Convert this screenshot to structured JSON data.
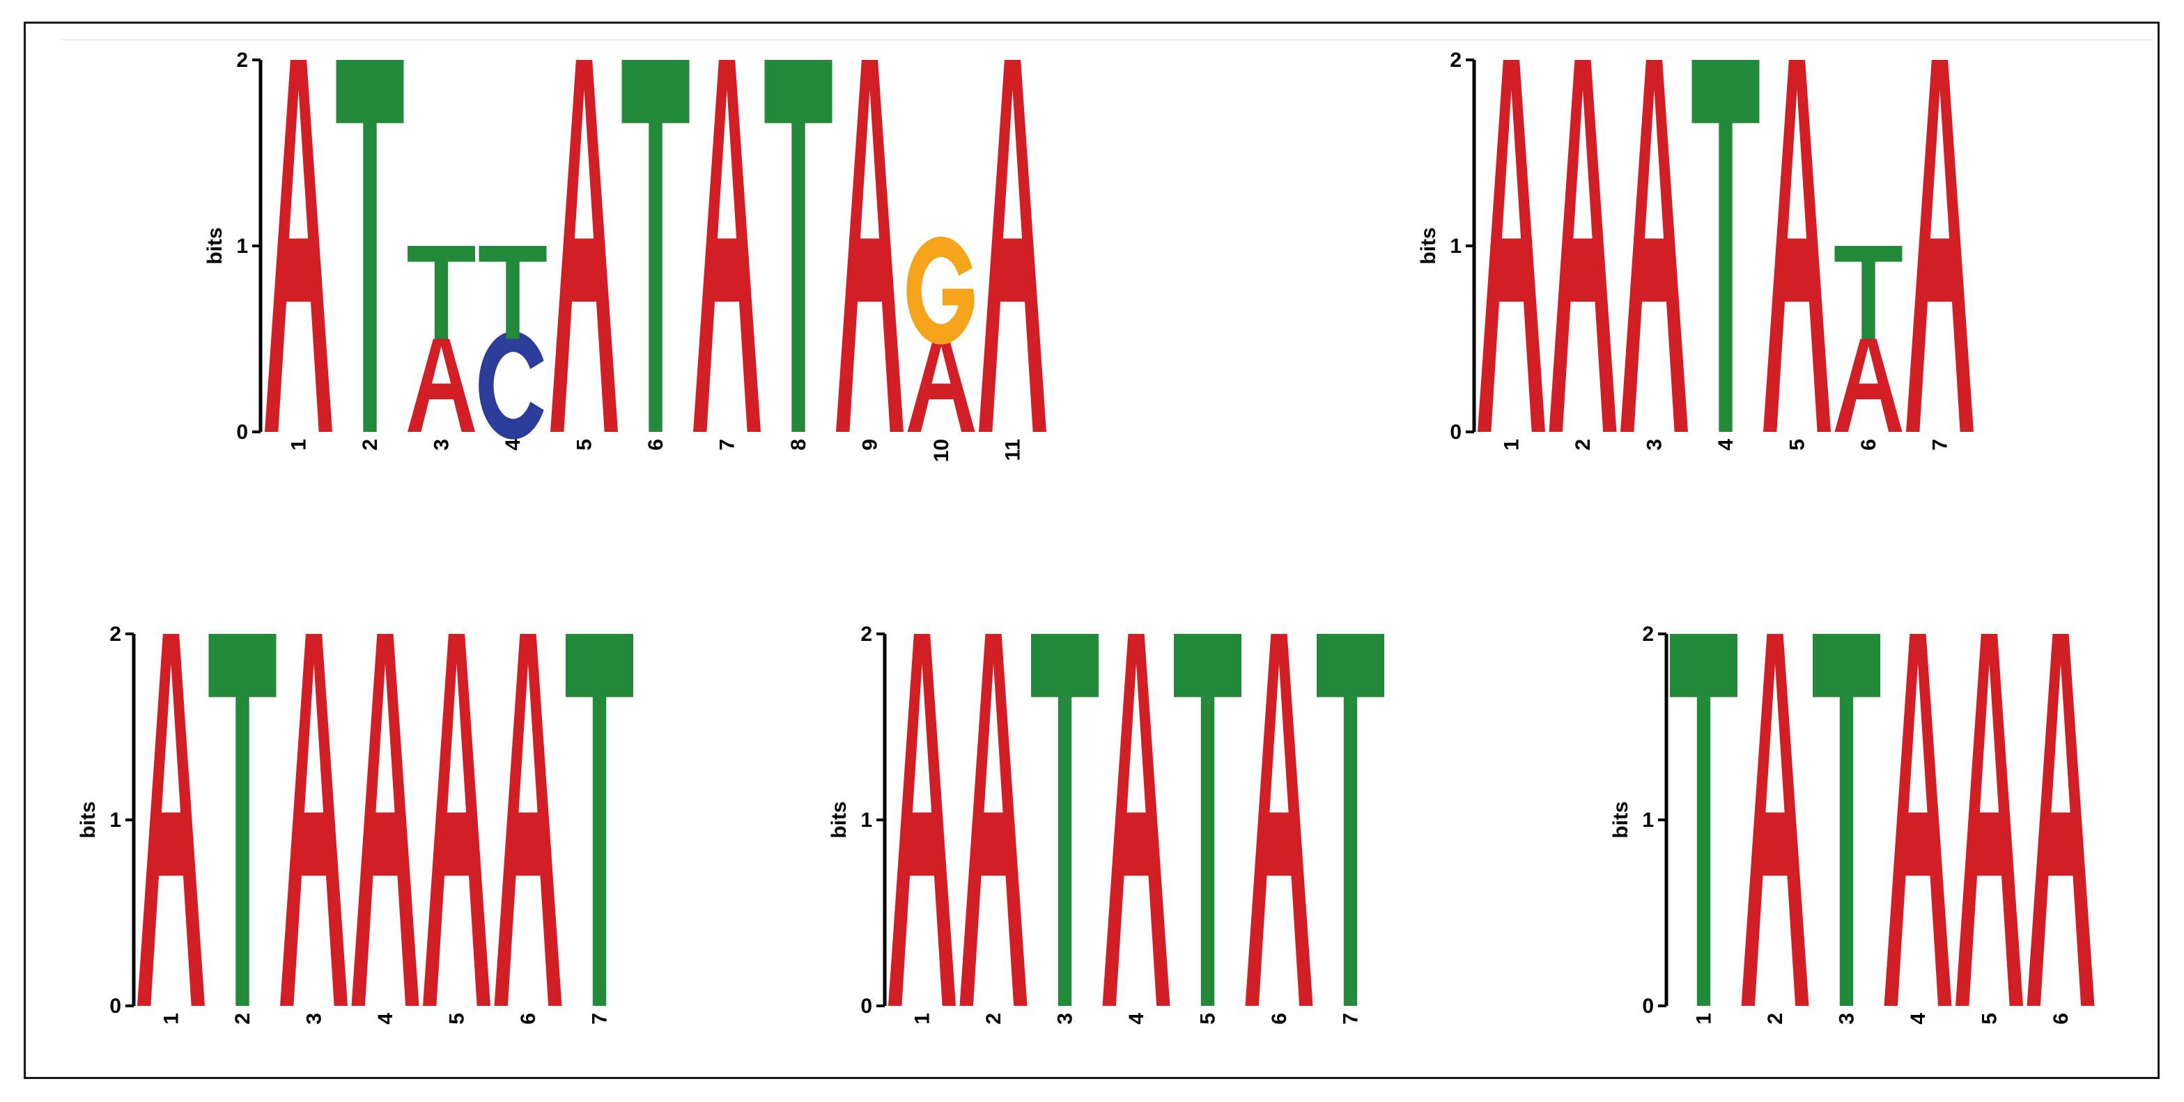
{
  "colors": {
    "A": "#d21f26",
    "C": "#2c3c99",
    "G": "#f5a41c",
    "T": "#248a3b"
  },
  "chart_data": [
    {
      "type": "sequence-logo",
      "ylabel": "bits",
      "ylim": [
        0,
        2
      ],
      "yticks": [
        "0",
        "1",
        "2"
      ],
      "positions": [
        "1",
        "2",
        "3",
        "4",
        "5",
        "6",
        "7",
        "8",
        "9",
        "10",
        "11"
      ],
      "columns": [
        [
          {
            "letter": "A",
            "bits": 2.0
          }
        ],
        [
          {
            "letter": "T",
            "bits": 2.0
          }
        ],
        [
          {
            "letter": "A",
            "bits": 0.5
          },
          {
            "letter": "T",
            "bits": 0.5
          }
        ],
        [
          {
            "letter": "C",
            "bits": 0.5
          },
          {
            "letter": "T",
            "bits": 0.5
          }
        ],
        [
          {
            "letter": "A",
            "bits": 2.0
          }
        ],
        [
          {
            "letter": "T",
            "bits": 2.0
          }
        ],
        [
          {
            "letter": "A",
            "bits": 2.0
          }
        ],
        [
          {
            "letter": "T",
            "bits": 2.0
          }
        ],
        [
          {
            "letter": "A",
            "bits": 2.0
          }
        ],
        [
          {
            "letter": "A",
            "bits": 0.5
          },
          {
            "letter": "G",
            "bits": 0.5
          }
        ],
        [
          {
            "letter": "A",
            "bits": 2.0
          }
        ]
      ]
    },
    {
      "type": "sequence-logo",
      "ylabel": "bits",
      "ylim": [
        0,
        2
      ],
      "yticks": [
        "0",
        "1",
        "2"
      ],
      "positions": [
        "1",
        "2",
        "3",
        "4",
        "5",
        "6",
        "7"
      ],
      "columns": [
        [
          {
            "letter": "A",
            "bits": 2.0
          }
        ],
        [
          {
            "letter": "A",
            "bits": 2.0
          }
        ],
        [
          {
            "letter": "A",
            "bits": 2.0
          }
        ],
        [
          {
            "letter": "T",
            "bits": 2.0
          }
        ],
        [
          {
            "letter": "A",
            "bits": 2.0
          }
        ],
        [
          {
            "letter": "A",
            "bits": 0.5
          },
          {
            "letter": "T",
            "bits": 0.5
          }
        ],
        [
          {
            "letter": "A",
            "bits": 2.0
          }
        ]
      ]
    },
    {
      "type": "sequence-logo",
      "ylabel": "bits",
      "ylim": [
        0,
        2
      ],
      "yticks": [
        "0",
        "1",
        "2"
      ],
      "positions": [
        "1",
        "2",
        "3",
        "4",
        "5",
        "6",
        "7"
      ],
      "columns": [
        [
          {
            "letter": "A",
            "bits": 2.0
          }
        ],
        [
          {
            "letter": "T",
            "bits": 2.0
          }
        ],
        [
          {
            "letter": "A",
            "bits": 2.0
          }
        ],
        [
          {
            "letter": "A",
            "bits": 2.0
          }
        ],
        [
          {
            "letter": "A",
            "bits": 2.0
          }
        ],
        [
          {
            "letter": "A",
            "bits": 2.0
          }
        ],
        [
          {
            "letter": "T",
            "bits": 2.0
          }
        ]
      ]
    },
    {
      "type": "sequence-logo",
      "ylabel": "bits",
      "ylim": [
        0,
        2
      ],
      "yticks": [
        "0",
        "1",
        "2"
      ],
      "positions": [
        "1",
        "2",
        "3",
        "4",
        "5",
        "6",
        "7"
      ],
      "columns": [
        [
          {
            "letter": "A",
            "bits": 2.0
          }
        ],
        [
          {
            "letter": "A",
            "bits": 2.0
          }
        ],
        [
          {
            "letter": "T",
            "bits": 2.0
          }
        ],
        [
          {
            "letter": "A",
            "bits": 2.0
          }
        ],
        [
          {
            "letter": "T",
            "bits": 2.0
          }
        ],
        [
          {
            "letter": "A",
            "bits": 2.0
          }
        ],
        [
          {
            "letter": "T",
            "bits": 2.0
          }
        ]
      ]
    },
    {
      "type": "sequence-logo",
      "ylabel": "bits",
      "ylim": [
        0,
        2
      ],
      "yticks": [
        "0",
        "1",
        "2"
      ],
      "positions": [
        "1",
        "2",
        "3",
        "4",
        "5",
        "6"
      ],
      "columns": [
        [
          {
            "letter": "T",
            "bits": 2.0
          }
        ],
        [
          {
            "letter": "A",
            "bits": 2.0
          }
        ],
        [
          {
            "letter": "T",
            "bits": 2.0
          }
        ],
        [
          {
            "letter": "A",
            "bits": 2.0
          }
        ],
        [
          {
            "letter": "A",
            "bits": 2.0
          }
        ],
        [
          {
            "letter": "A",
            "bits": 2.0
          }
        ]
      ]
    }
  ]
}
